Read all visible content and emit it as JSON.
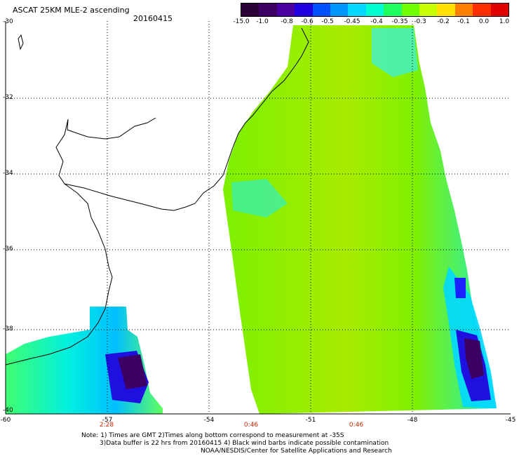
{
  "title": "ASCAT 25KM MLE-2 ascending",
  "date": "20160415",
  "colorbar": {
    "labels": [
      "-15.0",
      "-1.0",
      "-0.8",
      "-0.6",
      "-0.5",
      "-0.45",
      "-0.4",
      "-0.35",
      "-0.3",
      "-0.2",
      "-0.1",
      "0.0",
      "1.0"
    ],
    "colors": [
      "#2a0038",
      "#3c0062",
      "#4a00a0",
      "#1e00e0",
      "#0050ff",
      "#0096ff",
      "#00d8ff",
      "#00ffd0",
      "#20ff60",
      "#70ff00",
      "#c8ff00",
      "#ffe000",
      "#ff8000",
      "#ff3000",
      "#e00000"
    ]
  },
  "lat_labels": [
    "-30",
    "-32",
    "-34",
    "-36",
    "-38",
    "-40"
  ],
  "lon_labels": [
    "-60",
    "-57",
    "-54",
    "-51",
    "-48",
    "-45"
  ],
  "time_labels": [
    "2:28",
    "0:46",
    "0:46"
  ],
  "notes": [
    "Note: 1) Times are GMT 2)Times along bottom correspond to measurement at -35S",
    "3)Data buffer is 22 hrs from 20160415 4) Black wind barbs indicate possible contamination",
    "NOAA/NESDIS/Center for Satellite Applications and Research"
  ]
}
